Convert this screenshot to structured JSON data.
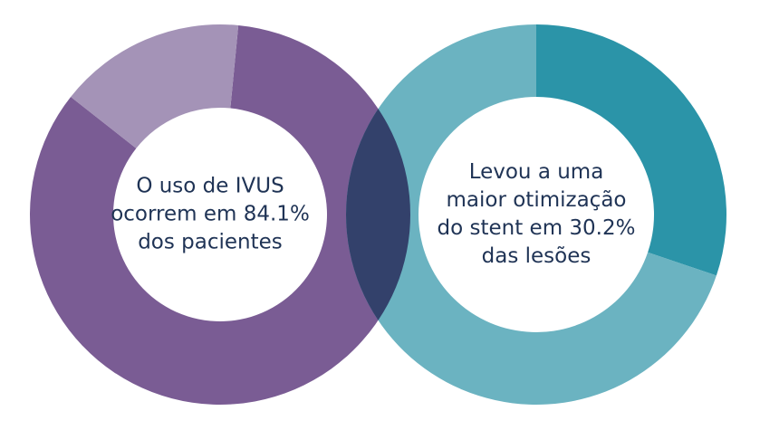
{
  "chart_data": [
    {
      "type": "donut",
      "text_lines": [
        "O uso de IVUS",
        "ocorrem em 84.1%",
        "dos pacientes"
      ],
      "values": [
        84.1,
        15.9
      ],
      "colors": [
        "#7a5c94",
        "#a493b7"
      ]
    },
    {
      "type": "donut",
      "text_lines": [
        "Levou a uma",
        "maior otimização",
        "do stent em 30.2%",
        "das lesões"
      ],
      "values": [
        30.2,
        69.8
      ],
      "colors": [
        "#2b94a8",
        "#6bb3c1"
      ]
    }
  ]
}
